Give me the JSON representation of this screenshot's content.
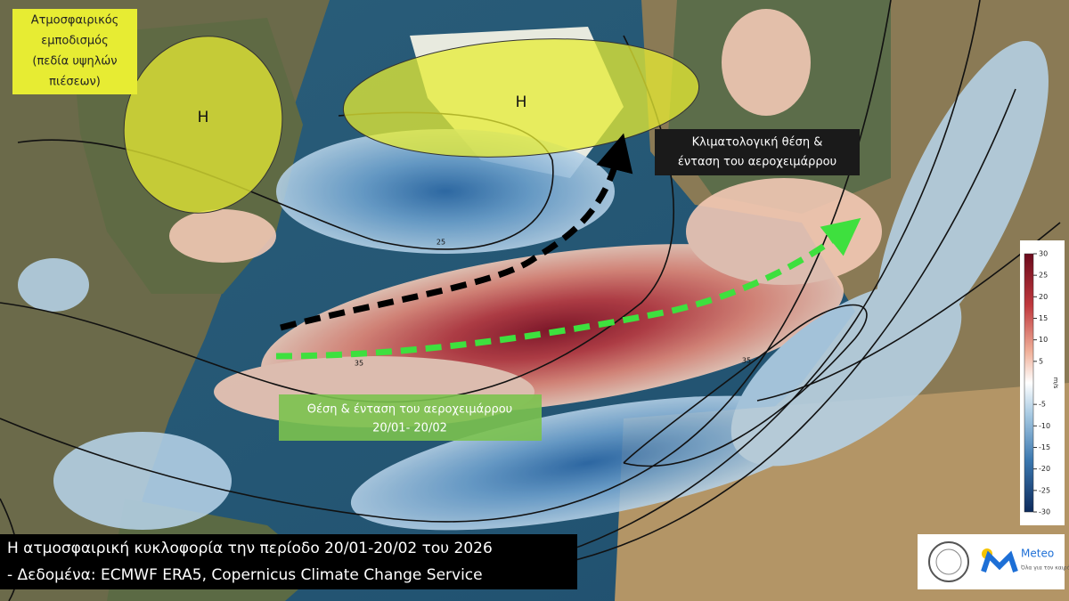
{
  "blocking_label": {
    "lines": [
      "Ατμοσφαιρικός",
      "εμποδισμός",
      "(πεδία υψηλών",
      "πιέσεων)"
    ]
  },
  "high_markers": [
    "Η",
    "Η"
  ],
  "climatological_label": {
    "lines": [
      "Κλιματολογική θέση &",
      "ένταση του αεροχειμάρρου"
    ]
  },
  "observed_label": {
    "lines": [
      "Θέση & ένταση του αεροχειμάρρου",
      "20/01- 20/02"
    ]
  },
  "contour_labels": [
    25,
    35,
    35
  ],
  "caption": {
    "lines": [
      "Η ατμοσφαιρική κυκλοφορία την περίοδο 20/01-20/02 του 2026",
      "- Δεδομένα: ECMWF ERA5, Copernicus Climate Change Service"
    ]
  },
  "colorbar": {
    "unit": "m/s",
    "range": [
      -30,
      30
    ],
    "ticks": [
      30,
      25,
      20,
      15,
      10,
      5,
      -5,
      -10,
      -15,
      -20,
      -25,
      -30
    ]
  },
  "logo": {
    "name": "Meteo",
    "tagline": "Όλα για τον καιρό"
  }
}
